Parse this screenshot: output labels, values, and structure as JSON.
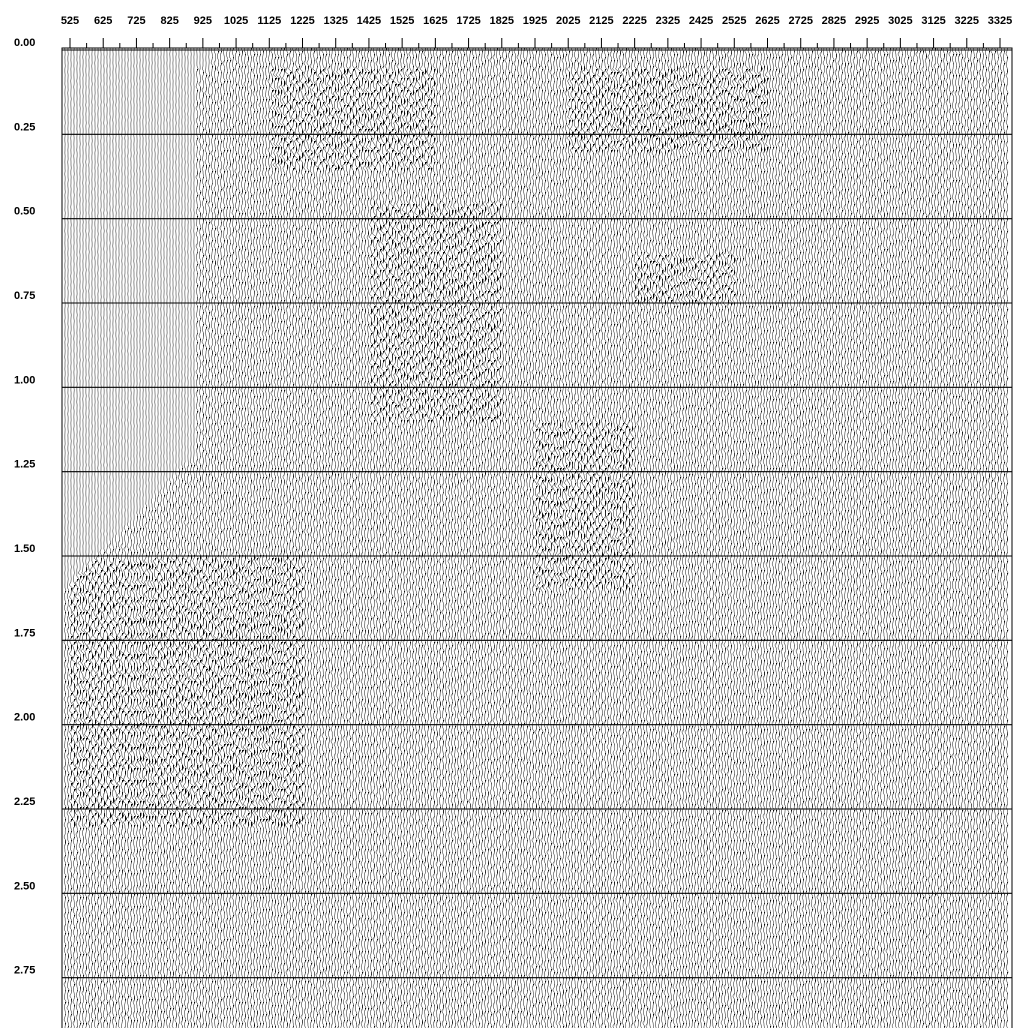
{
  "chart_data": {
    "type": "seismic-wiggle",
    "title": "",
    "xlabel": "",
    "ylabel": "",
    "x_tick_labels": [
      "525",
      "625",
      "725",
      "825",
      "925",
      "1025",
      "1125",
      "1225",
      "1325",
      "1425",
      "1525",
      "1625",
      "1725",
      "1825",
      "1925",
      "2025",
      "2125",
      "2225",
      "2325",
      "2425",
      "2525",
      "2625",
      "2725",
      "2825",
      "2925",
      "3025",
      "3125",
      "3225",
      "3325"
    ],
    "x_ticks": [
      525,
      625,
      725,
      825,
      925,
      1025,
      1125,
      1225,
      1325,
      1425,
      1525,
      1625,
      1725,
      1825,
      1925,
      2025,
      2125,
      2225,
      2325,
      2425,
      2525,
      2625,
      2725,
      2825,
      2925,
      3025,
      3125,
      3225,
      3325
    ],
    "xlim": [
      420,
      3370
    ],
    "y_tick_labels": [
      "0.00",
      "0.25",
      "0.50",
      "0.75",
      "1.00",
      "1.25",
      "1.50",
      "1.75",
      "2.00",
      "2.25",
      "2.50",
      "2.75"
    ],
    "y_ticks": [
      0.0,
      0.25,
      0.5,
      0.75,
      1.0,
      1.25,
      1.5,
      1.75,
      2.0,
      2.25,
      2.5,
      2.75
    ],
    "ylim": [
      0.0,
      2.85
    ],
    "y_inverted": true,
    "grid": "horizontal",
    "trace_fill": "positive-black",
    "colors": {
      "ink": "#000000",
      "background": "#ffffff"
    },
    "events": [
      {
        "name": "shallow-arrival-left",
        "x_range": [
          1125,
          1625
        ],
        "t_range": [
          0.05,
          0.35
        ]
      },
      {
        "name": "shallow-arrival-right",
        "x_range": [
          2025,
          2625
        ],
        "t_range": [
          0.05,
          0.3
        ]
      },
      {
        "name": "diffraction-center",
        "x_range": [
          1425,
          1825
        ],
        "t_range": [
          0.45,
          1.1
        ]
      },
      {
        "name": "diffraction-right",
        "x_range": [
          2225,
          2525
        ],
        "t_range": [
          0.6,
          0.75
        ]
      },
      {
        "name": "dipping-event-mid",
        "x_range": [
          1925,
          2225
        ],
        "t_range": [
          1.1,
          1.6
        ]
      },
      {
        "name": "dipping-event-left",
        "x_range": [
          525,
          1225
        ],
        "t_range": [
          1.5,
          2.3
        ]
      }
    ]
  }
}
